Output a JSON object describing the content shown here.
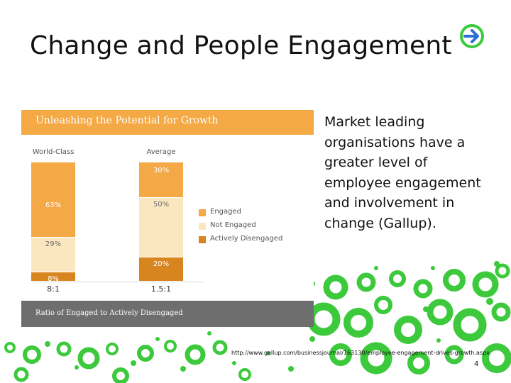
{
  "slide": {
    "title": "Change and People Engagement",
    "bullet_text": "Market leading organisations have a greater level of employee engagement and involvement in change (Gallup).",
    "source_url": "http://www.gallup.com/businessjournal/163130/employee-engagement-drives-growth.aspx",
    "page_number": "4",
    "nav_icon": "arrow-right-circle-icon"
  },
  "figure": {
    "header": "Unleashing the Potential for Growth",
    "footer": "Ratio of Engaged to Actively Disengaged"
  },
  "chart_data": {
    "type": "bar",
    "stacked": true,
    "title": "Unleashing the Potential for Growth",
    "categories": [
      "World-Class",
      "Average"
    ],
    "series": [
      {
        "name": "Engaged",
        "values": [
          63,
          30
        ],
        "labels": [
          "63%",
          "30%"
        ],
        "color": "#f5a846"
      },
      {
        "name": "Not Engaged",
        "values": [
          29,
          50
        ],
        "labels": [
          "29%",
          "50%"
        ],
        "color": "#fbe7bf"
      },
      {
        "name": "Actively Disengaged",
        "values": [
          8,
          20
        ],
        "labels": [
          "8%",
          "20%"
        ],
        "color": "#d7861f"
      }
    ],
    "ratios": [
      "8:1",
      "1.5:1"
    ],
    "legend_position": "right",
    "caption": "Ratio of Engaged to Actively Disengaged"
  },
  "colors": {
    "header_bar": "#f4a944",
    "footer_bar": "#6e6e6e",
    "decor_green": "#3cc93c",
    "nav_arrow": "#2e6fd6"
  }
}
